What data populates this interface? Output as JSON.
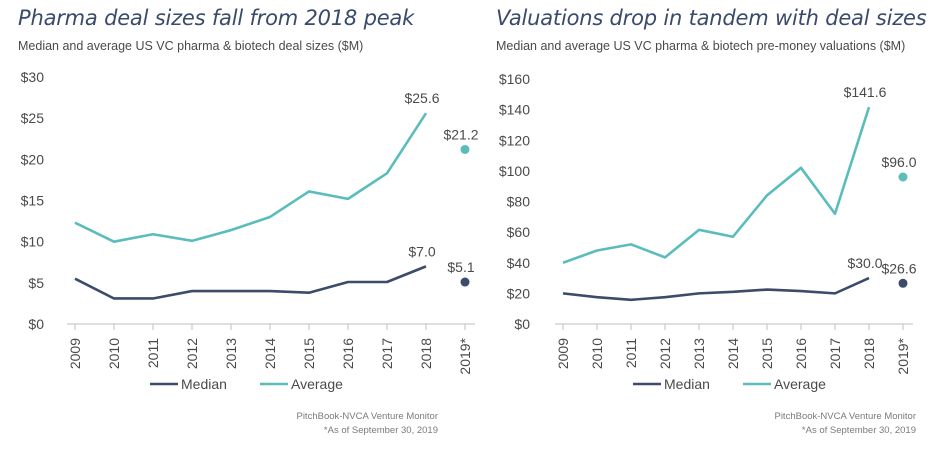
{
  "colors": {
    "median": "#3d4b6b",
    "average": "#5bbcbc",
    "text": "#4a4a4a",
    "axis": "#bfbfbf"
  },
  "chart_data": [
    {
      "type": "line",
      "title": "Pharma deal sizes fall from 2018 peak",
      "subtitle": "Median and average US VC pharma & biotech deal sizes ($M)",
      "categories": [
        "2009",
        "2010",
        "2011",
        "2012",
        "2013",
        "2014",
        "2015",
        "2016",
        "2017",
        "2018",
        "2019*"
      ],
      "ylim": [
        0,
        30
      ],
      "yticks": [
        0,
        5,
        10,
        15,
        20,
        25,
        30
      ],
      "ytick_labels": [
        "$0",
        "$5",
        "$10",
        "$15",
        "$20",
        "$25",
        "$30"
      ],
      "series": [
        {
          "name": "Median",
          "color": "#3d4b6b",
          "values": [
            5.5,
            3.1,
            3.1,
            4.0,
            4.0,
            4.0,
            3.8,
            5.1,
            5.1,
            7.0,
            5.1
          ]
        },
        {
          "name": "Average",
          "color": "#5bbcbc",
          "values": [
            12.3,
            10.0,
            10.9,
            10.1,
            11.4,
            13.0,
            16.1,
            15.2,
            18.3,
            25.6,
            21.2
          ]
        }
      ],
      "annotations": [
        {
          "series": "Average",
          "index": 9,
          "text": "$25.6"
        },
        {
          "series": "Average",
          "index": 10,
          "text": "$21.2"
        },
        {
          "series": "Median",
          "index": 9,
          "text": "$7.0"
        },
        {
          "series": "Median",
          "index": 10,
          "text": "$5.1"
        }
      ],
      "legend": [
        "Median",
        "Average"
      ],
      "source": "PitchBook-NVCA Venture Monitor",
      "footnote": "*As of September 30, 2019"
    },
    {
      "type": "line",
      "title": "Valuations drop in tandem with deal sizes",
      "subtitle": "Median and average US VC pharma & biotech pre-money valuations ($M)",
      "categories": [
        "2009",
        "2010",
        "2011",
        "2012",
        "2013",
        "2014",
        "2015",
        "2016",
        "2017",
        "2018",
        "2019*"
      ],
      "ylim": [
        0,
        160
      ],
      "yticks": [
        0,
        20,
        40,
        60,
        80,
        100,
        120,
        140,
        160
      ],
      "ytick_labels": [
        "$0",
        "$20",
        "$40",
        "$60",
        "$80",
        "$100",
        "$120",
        "$140",
        "$160"
      ],
      "series": [
        {
          "name": "Median",
          "color": "#3d4b6b",
          "values": [
            20.0,
            17.5,
            15.8,
            17.5,
            20.0,
            21.0,
            22.5,
            21.5,
            20.0,
            30.0,
            26.6
          ]
        },
        {
          "name": "Average",
          "color": "#5bbcbc",
          "values": [
            40.0,
            48.0,
            52.0,
            43.5,
            61.5,
            57.0,
            84.0,
            102.0,
            72.0,
            141.6,
            96.0
          ]
        }
      ],
      "annotations": [
        {
          "series": "Average",
          "index": 9,
          "text": "$141.6"
        },
        {
          "series": "Average",
          "index": 10,
          "text": "$96.0"
        },
        {
          "series": "Median",
          "index": 9,
          "text": "$30.0"
        },
        {
          "series": "Median",
          "index": 10,
          "text": "$26.6"
        }
      ],
      "legend": [
        "Median",
        "Average"
      ],
      "source": "PitchBook-NVCA Venture Monitor",
      "footnote": "*As of September 30, 2019"
    }
  ]
}
